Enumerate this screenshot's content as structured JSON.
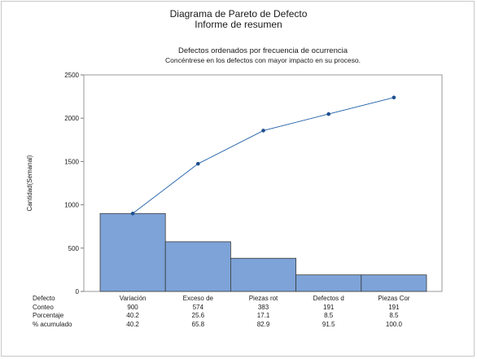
{
  "header": {
    "title": "Diagrama de Pareto de Defecto",
    "subtitle": "Informe de resumen"
  },
  "plot": {
    "title": "Defectos ordenados por frecuencia de ocurrencia",
    "subtitle": "Concéntrese en los defectos con mayor impacto en su proceso."
  },
  "chart_data": {
    "type": "bar",
    "ylabel": "Cantidad(Semanal)",
    "ylim": [
      0,
      2500
    ],
    "yticks": [
      "0",
      "500",
      "1000",
      "1500",
      "2000",
      "2500"
    ],
    "categories": [
      "Variación",
      "Exceso de",
      "Piezas rot",
      "Defectos d",
      "Piezas Cor"
    ],
    "series": [
      {
        "type": "bar",
        "values": [
          900,
          574,
          383,
          191,
          191
        ],
        "color": "#7da3d8"
      },
      {
        "type": "line",
        "values": [
          900,
          1474,
          1857,
          2048,
          2239
        ],
        "color": "#1f5fa8"
      }
    ],
    "grid": false,
    "legend": "none",
    "table": {
      "row_labels": [
        "Defecto",
        "Conteo",
        "Porcentaje",
        "% acumulado"
      ],
      "conteo": [
        "900",
        "574",
        "383",
        "191",
        "191"
      ],
      "porcentaje": [
        "40.2",
        "25.6",
        "17.1",
        "8.5",
        "8.5"
      ],
      "acumulado": [
        "40.2",
        "65.8",
        "82.9",
        "91.5",
        "100.0"
      ]
    }
  }
}
